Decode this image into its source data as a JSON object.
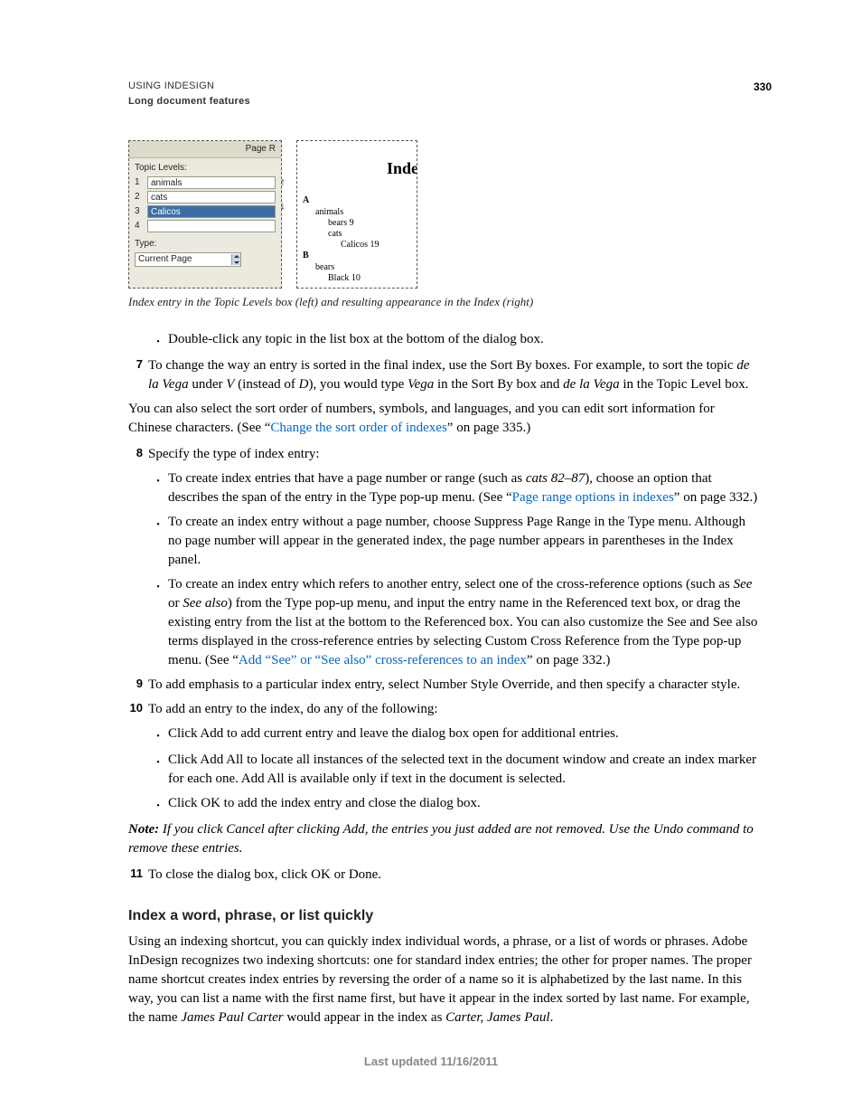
{
  "page_number": "330",
  "header": {
    "line1": "USING INDESIGN",
    "line2": "Long document features"
  },
  "panel_left": {
    "titlebar": "Page R",
    "topic_levels_label": "Topic Levels:",
    "rows": [
      {
        "n": "1",
        "val": "animals",
        "sel": false
      },
      {
        "n": "2",
        "val": "cats",
        "sel": false
      },
      {
        "n": "3",
        "val": "Calicos",
        "sel": true
      },
      {
        "n": "4",
        "val": "",
        "sel": false
      }
    ],
    "type_label": "Type:",
    "type_value": "Current Page"
  },
  "panel_right": {
    "title": "Inde",
    "items": [
      {
        "txt": "A",
        "cls": "lA"
      },
      {
        "txt": "animals",
        "cls": "i1"
      },
      {
        "txt": "bears  9",
        "cls": "i2"
      },
      {
        "txt": "cats",
        "cls": "i2"
      },
      {
        "txt": "Calicos  19",
        "cls": "i3"
      },
      {
        "txt": "B",
        "cls": "lA"
      },
      {
        "txt": "bears",
        "cls": "i1"
      },
      {
        "txt": "Black  10",
        "cls": "i2"
      }
    ]
  },
  "fig_caption": "Index entry in the Topic Levels box (left) and resulting appearance in the Index (right)",
  "t": {
    "dblclick": "Double-click any topic in the list box at the bottom of the dialog box.",
    "step7a": "To change the way an entry is sorted in the final index, use the Sort By boxes. For example, to sort the topic ",
    "step7_dela": "de la Vega",
    "step7b": " under ",
    "step7_V": "V",
    "step7c": " (instead of ",
    "step7_D": "D",
    "step7d": "), you would type ",
    "step7_Vega": "Vega",
    "step7e": " in the Sort By box and ",
    "step7_dela2": "de la Vega",
    "step7f": " in the Topic Level box.",
    "para1a": "You can also select the sort order of numbers, symbols, and languages, and you can edit sort information for Chinese characters. (See “",
    "link1": "Change the sort order of indexes",
    "para1b": "” on page 335.)",
    "step8": "Specify the type of index entry:",
    "b1a": "To create index entries that have a page number or range (such as ",
    "b1_cats": "cats 82–87",
    "b1b": "), choose an option that describes the span of the entry in the Type pop-up menu. (See “",
    "link2": "Page range options in indexes",
    "b1c": "” on page 332.)",
    "b2": "To create an index entry without a page number, choose Suppress Page Range in the Type menu. Although no page number will appear in the generated index, the page number appears in parentheses in the Index panel.",
    "b3a": "To create an index entry which refers to another entry, select one of the cross-reference options (such as ",
    "b3_see": "See",
    "b3b": " or ",
    "b3_seealso": "See also",
    "b3c": ") from the Type pop-up menu, and input the entry name in the Referenced text box, or drag the existing entry from the list at the bottom to the Referenced box. You can also customize the See and See also terms displayed in the cross-reference entries by selecting Custom Cross Reference from the Type pop-up menu. (See “",
    "link3": "Add “See” or “See also” cross-references to an index",
    "b3d": "” on page 332.)",
    "step9": "To add emphasis to a particular index entry, select Number Style Override, and then specify a character style.",
    "step10": "To add an entry to the index, do any of the following:",
    "b10a": "Click Add to add current entry and leave the dialog box open for additional entries.",
    "b10b": "Click Add All to locate all instances of the selected text in the document window and create an index marker for each one. Add All is available only if text in the document is selected.",
    "b10c": "Click OK to add the index entry and close the dialog box.",
    "note_label": "Note:",
    "note_body": " If you click Cancel after clicking Add, the entries you just added are not removed. Use the Undo command to remove these entries.",
    "step11": "To close the dialog box, click OK or Done.",
    "h3": "Index a word, phrase, or list quickly",
    "para2a": "Using an indexing shortcut, you can quickly index individual words, a phrase, or a list of words or phrases. Adobe InDesign recognizes two indexing shortcuts: one for standard index entries; the other for proper names. The proper name shortcut creates index entries by reversing the order of a name so it is alphabetized by the last name. In this way, you can list a name with the first name first, but have it appear in the index sorted by last name. For example, the name ",
    "para2_name1": "James Paul Carter",
    "para2b": " would appear in the index as ",
    "para2_name2": "Carter, James Paul",
    "para2c": "."
  },
  "footer": "Last updated 11/16/2011"
}
